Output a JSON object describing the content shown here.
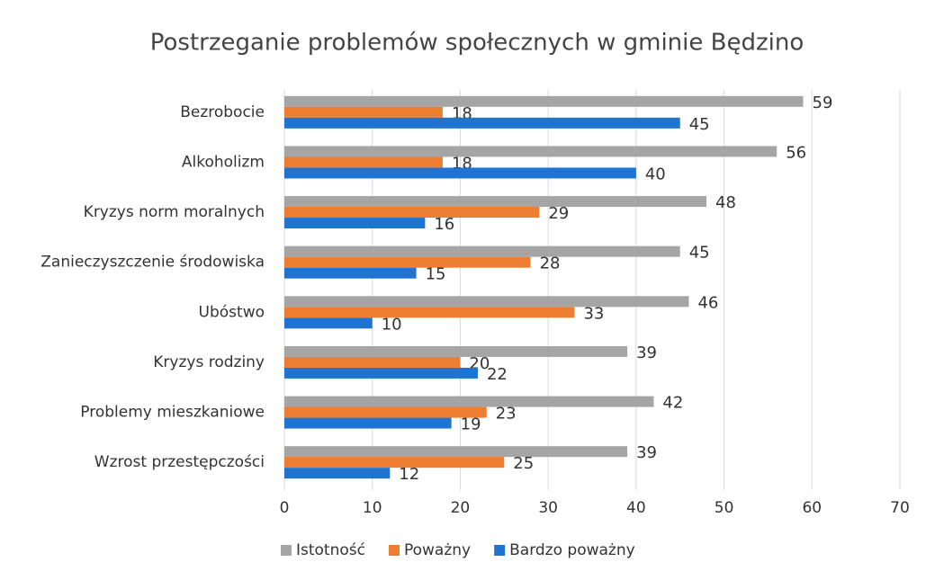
{
  "chart_data": {
    "type": "bar",
    "orientation": "horizontal",
    "title": "Postrzeganie problemów społecznych w gminie Będzino",
    "categories": [
      "Bezrobocie",
      "Alkoholizm",
      "Kryzys norm moralnych",
      "Zanieczyszczenie środowiska",
      "Ubóstwo",
      "Kryzys rodziny",
      "Problemy mieszkaniowe",
      "Wzrost przestępczości"
    ],
    "series": [
      {
        "name": "Istotność",
        "color": "#a5a5a5",
        "values": [
          59,
          56,
          48,
          45,
          46,
          39,
          42,
          39
        ]
      },
      {
        "name": "Poważny",
        "color": "#ed7d31",
        "values": [
          18,
          18,
          29,
          28,
          33,
          20,
          23,
          25
        ]
      },
      {
        "name": "Bardzo poważny",
        "color": "#1f73d1",
        "values": [
          45,
          40,
          16,
          15,
          10,
          22,
          19,
          12
        ]
      }
    ],
    "xlim": [
      0,
      70
    ],
    "xticks": [
      0,
      10,
      20,
      30,
      40,
      50,
      60,
      70
    ],
    "grid": true,
    "legend": "bottom"
  }
}
